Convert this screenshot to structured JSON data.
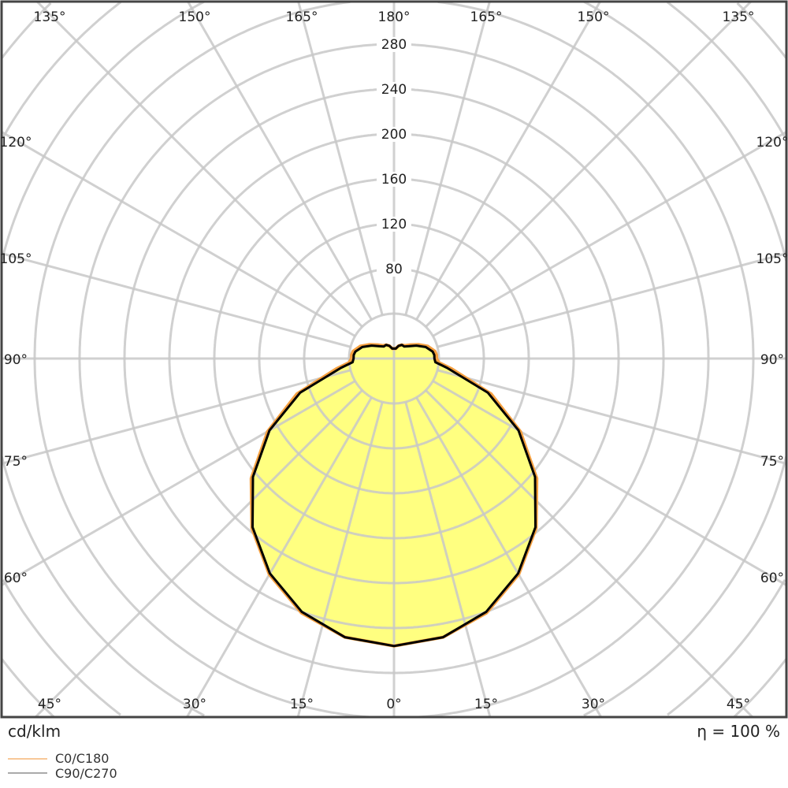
{
  "chart_data": {
    "type": "polar",
    "unit_label": "cd/klm",
    "efficiency_label": "η = 100 %",
    "radial_ticks": [
      80,
      120,
      160,
      200,
      240,
      280
    ],
    "radial_step": 40,
    "angle_labels_top": [
      "135°",
      "150°",
      "165°",
      "180°",
      "165°",
      "150°",
      "135°"
    ],
    "angle_labels_side": [
      "120°",
      "105°",
      "90°",
      "75°",
      "60°"
    ],
    "angle_labels_bottom": [
      "45°",
      "30°",
      "15°",
      "0°",
      "15°",
      "30°",
      "45°"
    ],
    "grid": true,
    "legend_position": "bottom-left",
    "angles": [
      0,
      10,
      20,
      30,
      40,
      50,
      60,
      70,
      80,
      85,
      90,
      95,
      100,
      110,
      120,
      130,
      140,
      150,
      160,
      170,
      180
    ],
    "series": [
      {
        "name": "C0/C180",
        "color": "#f5a040",
        "values": [
          256,
          252,
          241,
          222,
          197,
          166,
          130,
          92,
          52,
          40,
          38,
          38,
          37,
          32,
          25,
          19,
          15,
          14,
          12,
          9,
          9
        ]
      },
      {
        "name": "C90/C270",
        "color": "#888888",
        "values": [
          256,
          252,
          240,
          221,
          196,
          164,
          128,
          89,
          48,
          37,
          36,
          36,
          35,
          30,
          23,
          17,
          14,
          14,
          12,
          9,
          9
        ]
      }
    ],
    "fill_color": "#ffff80"
  }
}
